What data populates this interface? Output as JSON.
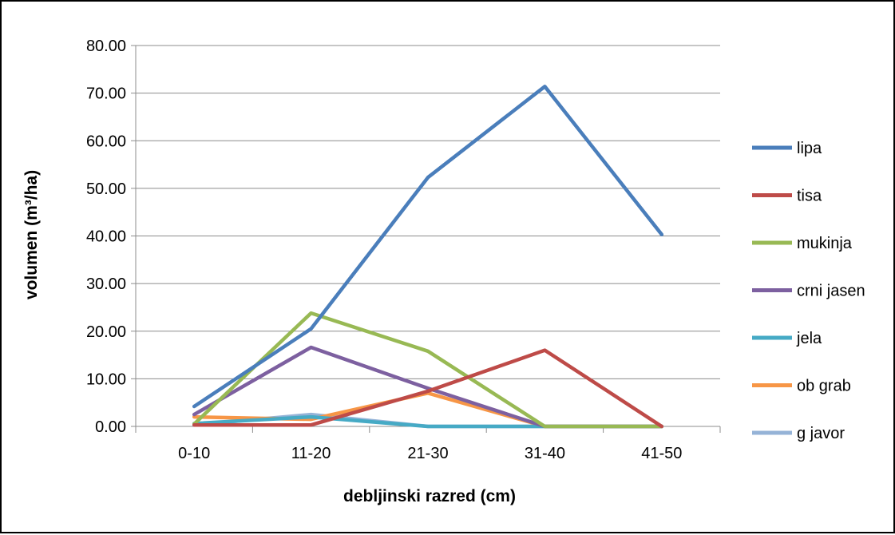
{
  "chart_data": {
    "type": "line",
    "title": "",
    "xlabel": "debljinski razred (cm)",
    "ylabel": "volumen (m³/ha)",
    "categories": [
      "0-10",
      "11-20",
      "21-30",
      "31-40",
      "41-50"
    ],
    "ylim": [
      0,
      80
    ],
    "yticks": [
      0,
      10,
      20,
      30,
      40,
      50,
      60,
      70,
      80
    ],
    "ytick_labels": [
      "0.00",
      "10.00",
      "20.00",
      "30.00",
      "40.00",
      "50.00",
      "60.00",
      "70.00",
      "80.00"
    ],
    "grid": true,
    "legend_position": "right",
    "series": [
      {
        "name": "lipa",
        "color": "#4A7EBB",
        "values": [
          4.2,
          20.5,
          52.3,
          71.4,
          40.3
        ]
      },
      {
        "name": "tisa",
        "color": "#BE4B48",
        "values": [
          0.3,
          0.3,
          7.4,
          16.0,
          0.0
        ]
      },
      {
        "name": "mukinja",
        "color": "#98B954",
        "values": [
          0.5,
          23.8,
          15.8,
          0.0,
          0.0
        ]
      },
      {
        "name": "crni jasen",
        "color": "#7D60A0",
        "values": [
          2.5,
          16.6,
          8.0,
          0.0,
          0.0
        ]
      },
      {
        "name": "jela",
        "color": "#46AAC5",
        "values": [
          0.6,
          2.0,
          0.0,
          0.0,
          0.0
        ]
      },
      {
        "name": "ob grab",
        "color": "#F79646",
        "values": [
          2.0,
          1.5,
          7.0,
          0.0,
          0.0
        ]
      },
      {
        "name": "g javor",
        "color": "#95B3D7",
        "values": [
          0.3,
          2.5,
          0.0,
          0.0,
          0.0
        ]
      }
    ]
  }
}
